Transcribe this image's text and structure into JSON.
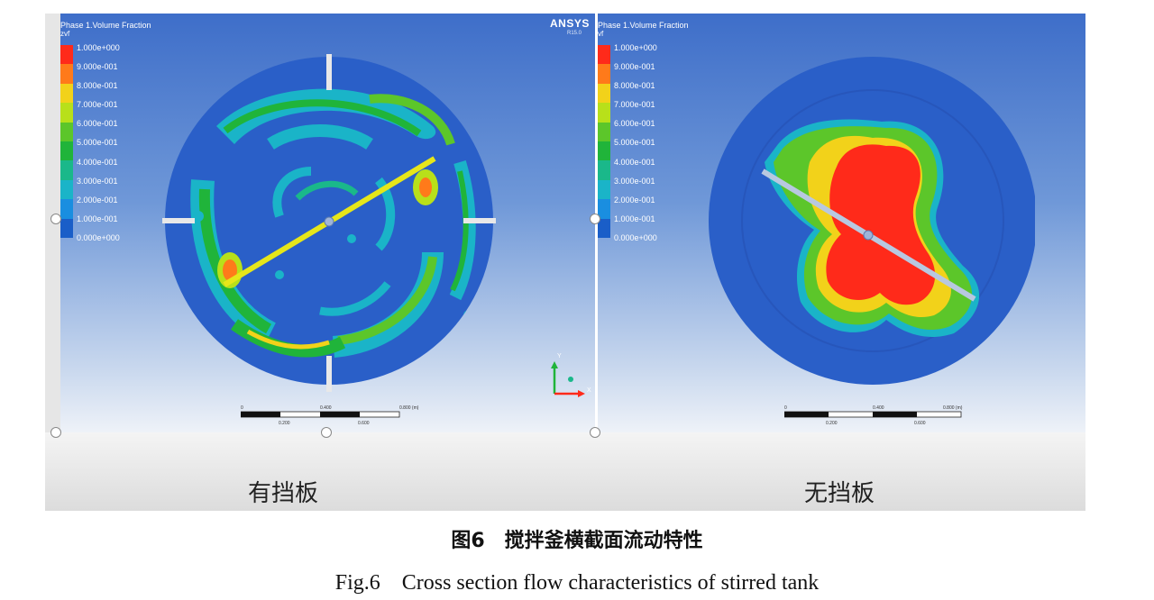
{
  "left_panel": {
    "legend_title": "Phase 1.Volume Fraction",
    "legend_var": "zvf",
    "logo": "ANSYS",
    "logo_sub": "R15.0",
    "caption": "有挡板",
    "scale_top": [
      "0",
      "0.400",
      "0.800 (m)"
    ],
    "scale_bottom": [
      "0.200",
      "0.600"
    ],
    "axis_y": "Y",
    "axis_x": "X"
  },
  "right_panel": {
    "legend_title": "Phase 1.Volume Fraction",
    "legend_var": "vf",
    "caption": "无挡板",
    "scale_top": [
      "0",
      "0.400",
      "0.800 (m)"
    ],
    "scale_bottom": [
      "0.200",
      "0.600"
    ]
  },
  "legend_labels": [
    "1.000e+000",
    "9.000e-001",
    "8.000e-001",
    "7.000e-001",
    "6.000e-001",
    "5.000e-001",
    "4.000e-001",
    "3.000e-001",
    "2.000e-001",
    "1.000e-001",
    "0.000e+000"
  ],
  "legend_colors": [
    "#ff2a1a",
    "#ff7a1a",
    "#f2d21a",
    "#b8e01a",
    "#5cc62a",
    "#20b43a",
    "#1ab88a",
    "#1ab4c8",
    "#1a8ee0",
    "#1a5ec8"
  ],
  "figure_caption_cn": "图6　搅拌釜横截面流动特性",
  "figure_caption_en": "Fig.6　Cross section flow characteristics of stirred tank"
}
